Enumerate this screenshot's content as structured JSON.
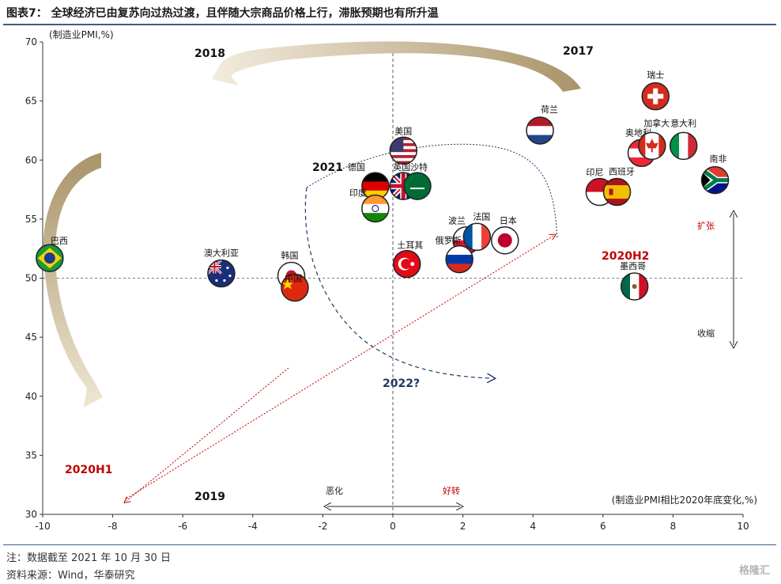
{
  "title": "图表7：  全球经济已由复苏向过热过渡，且伴随大宗商品价格上行，滞胀预期也有所升温",
  "notes": {
    "note": "注：数据截至 2021 年 10 月 30 日",
    "source": "资料来源：Wind，华泰研究"
  },
  "watermark": "格隆汇",
  "chart_data": {
    "type": "scatter",
    "ylabel": "(制造业PMI,%)",
    "xlabel": "(制造业PMI相比2020年底变化,%)",
    "xlim": [
      -10,
      10
    ],
    "ylim": [
      30,
      70
    ],
    "xticks": [
      "-10",
      "-8",
      "-6",
      "-4",
      "-2",
      "0",
      "2",
      "4",
      "6",
      "8",
      "10"
    ],
    "yticks": [
      "30",
      "35",
      "40",
      "45",
      "50",
      "55",
      "60",
      "65",
      "70"
    ],
    "reference_line_y": 50,
    "reference_line_x": 0,
    "grid": false,
    "points": [
      {
        "label": "巴西",
        "x": -9.8,
        "y": 51.7,
        "flag": "brazil"
      },
      {
        "label": "澳大利亚",
        "x": -4.9,
        "y": 50.4,
        "flag": "australia"
      },
      {
        "label": "韩国",
        "x": -2.9,
        "y": 50.2,
        "flag": "korea"
      },
      {
        "label": "中国",
        "x": -2.8,
        "y": 49.2,
        "flag": "china"
      },
      {
        "label": "美国",
        "x": 0.3,
        "y": 60.8,
        "flag": "usa"
      },
      {
        "label": "德国",
        "x": -0.5,
        "y": 57.8,
        "flag": "germany"
      },
      {
        "label": "英国",
        "x": 0.3,
        "y": 57.8,
        "flag": "uk"
      },
      {
        "label": "沙特",
        "x": 0.7,
        "y": 57.8,
        "flag": "saudi"
      },
      {
        "label": "印度",
        "x": -0.5,
        "y": 55.9,
        "flag": "india"
      },
      {
        "label": "土耳其",
        "x": 0.4,
        "y": 51.2,
        "flag": "turkey"
      },
      {
        "label": "波兰",
        "x": 2.1,
        "y": 53.2,
        "flag": "poland"
      },
      {
        "label": "法国",
        "x": 2.4,
        "y": 53.5,
        "flag": "france"
      },
      {
        "label": "日本",
        "x": 3.2,
        "y": 53.2,
        "flag": "japan"
      },
      {
        "label": "俄罗斯",
        "x": 1.9,
        "y": 51.6,
        "flag": "russia"
      },
      {
        "label": "荷兰",
        "x": 4.2,
        "y": 62.5,
        "flag": "netherlands"
      },
      {
        "label": "瑞士",
        "x": 7.5,
        "y": 65.4,
        "flag": "switzerland"
      },
      {
        "label": "奥地利",
        "x": 7.1,
        "y": 60.6,
        "flag": "austria"
      },
      {
        "label": "加拿大",
        "x": 7.4,
        "y": 61.2,
        "flag": "canada"
      },
      {
        "label": "意大利",
        "x": 8.3,
        "y": 61.2,
        "flag": "italy"
      },
      {
        "label": "南非",
        "x": 9.2,
        "y": 58.3,
        "flag": "southafrica"
      },
      {
        "label": "印尼",
        "x": 5.9,
        "y": 57.3,
        "flag": "indonesia"
      },
      {
        "label": "西班牙",
        "x": 6.4,
        "y": 57.3,
        "flag": "spain"
      },
      {
        "label": "墨西哥",
        "x": 6.9,
        "y": 49.3,
        "flag": "mexico"
      }
    ],
    "annotations": {
      "y2018": "2018",
      "y2017": "2017",
      "y2019": "2019",
      "y2021": "2021",
      "y2022": "2022?",
      "h1": "2020H1",
      "h2": "2020H2",
      "expand": "扩张",
      "contract": "收缩",
      "worse": "恶化",
      "better": "好转"
    },
    "colors": {
      "axis_title_blue": "#3d5d8c",
      "red_label": "#c00000",
      "dark_blue": "#1f3864",
      "arrow_tan": "#c8b48c"
    }
  }
}
